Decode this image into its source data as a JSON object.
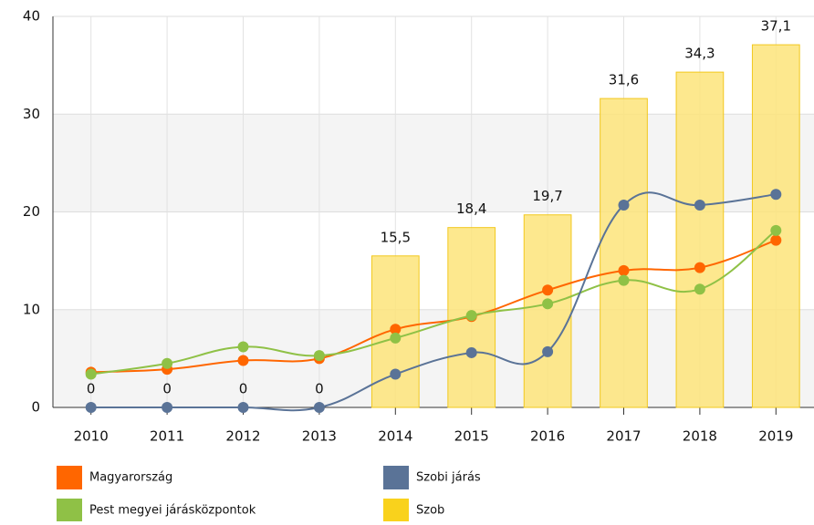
{
  "chart_data": {
    "type": "combo",
    "categories": [
      "2010",
      "2011",
      "2012",
      "2013",
      "2014",
      "2015",
      "2016",
      "2017",
      "2018",
      "2019"
    ],
    "ylim": [
      0,
      40
    ],
    "yticks": [
      0,
      10,
      20,
      30,
      40
    ],
    "grid": true,
    "bands": true,
    "series": [
      {
        "name": "Magyarország",
        "type": "line",
        "color": "#ff6600",
        "values": [
          3.6,
          3.9,
          4.8,
          5.0,
          8.0,
          9.3,
          12.0,
          14.0,
          14.3,
          17.1
        ]
      },
      {
        "name": "Pest megyei járásközpontok",
        "type": "line",
        "color": "#8fc146",
        "values": [
          3.4,
          4.5,
          6.2,
          5.3,
          7.1,
          9.4,
          10.6,
          13.0,
          12.1,
          18.1
        ]
      },
      {
        "name": "Szobi járás",
        "type": "line",
        "color": "#5a7397",
        "values": [
          0,
          0,
          0,
          0,
          3.4,
          5.6,
          5.7,
          20.7,
          20.7,
          21.8
        ]
      },
      {
        "name": "Szob",
        "type": "bar",
        "color": "#fde47a",
        "values": [
          0,
          0,
          0,
          0,
          15.5,
          18.4,
          19.7,
          31.6,
          34.3,
          37.1
        ],
        "value_labels": [
          "0",
          "0",
          "0",
          "0",
          "15,5",
          "18,4",
          "19,7",
          "31,6",
          "34,3",
          "37,1"
        ]
      }
    ]
  }
}
